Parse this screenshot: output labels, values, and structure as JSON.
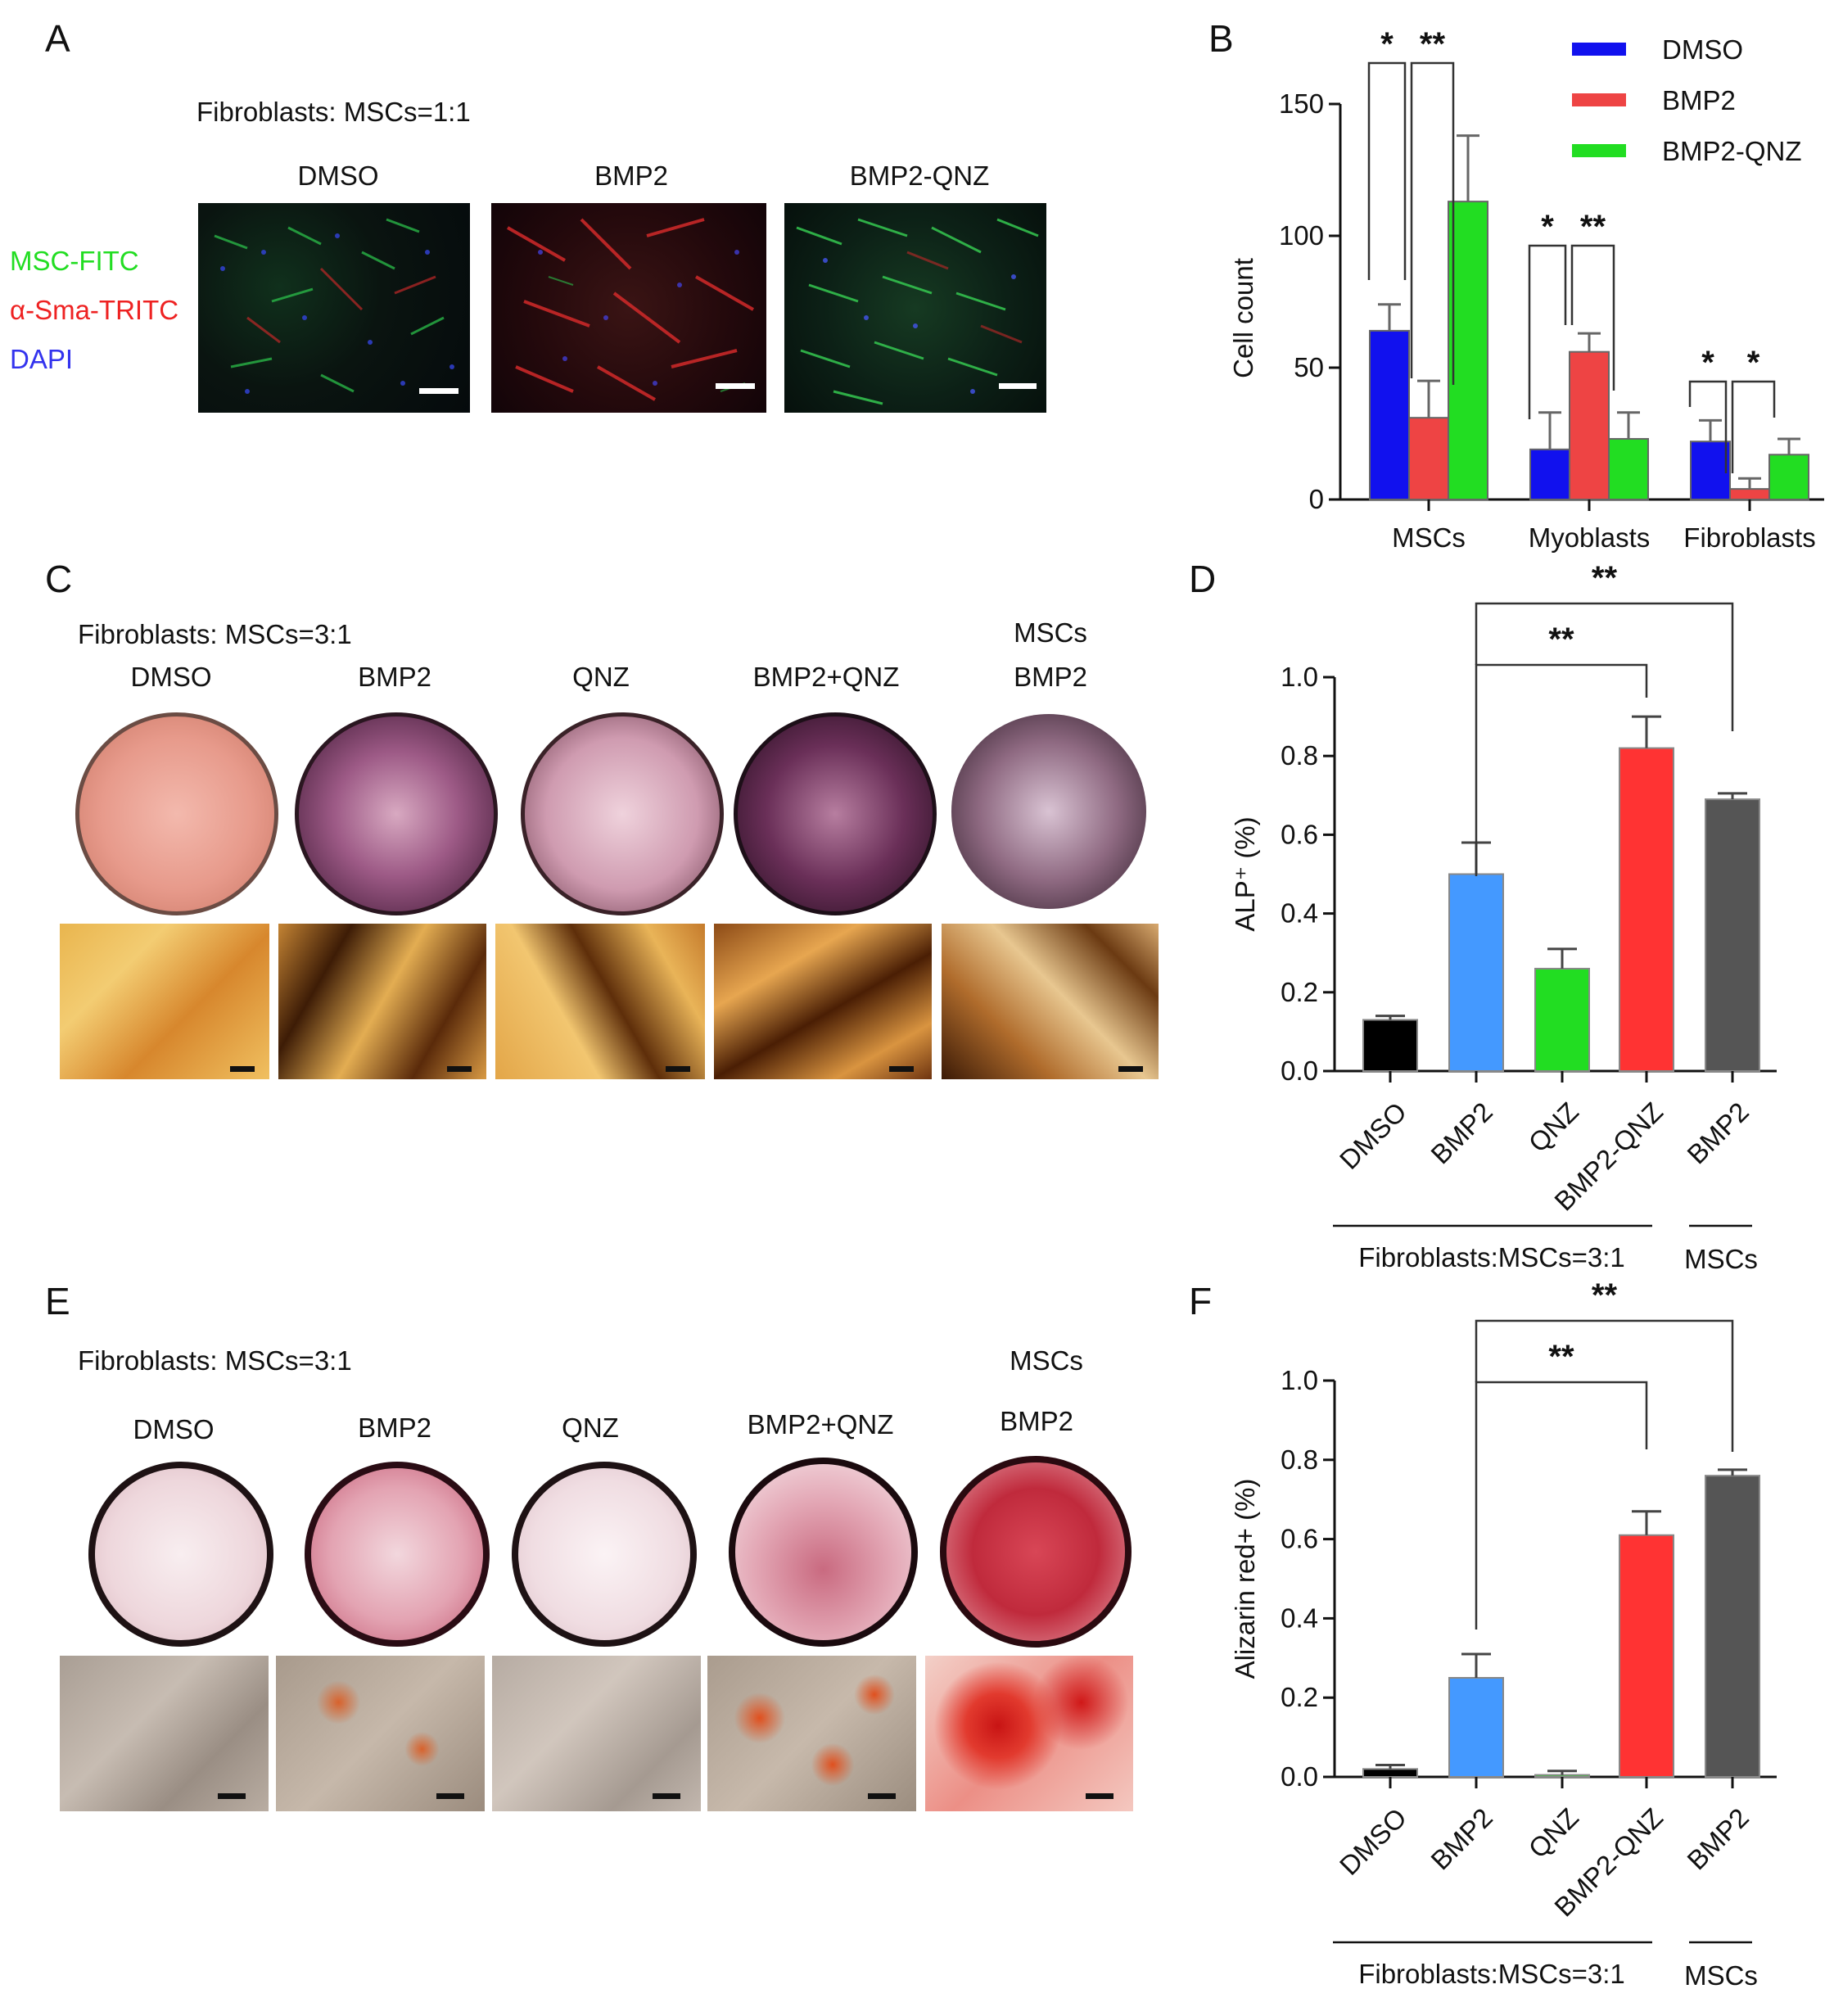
{
  "panelA": {
    "letter": "A",
    "ratio_label": "Fibroblasts: MSCs=1:1",
    "columns": [
      "DMSO",
      "BMP2",
      "BMP2-QNZ"
    ],
    "stain_legend": [
      {
        "label": "MSC-FITC",
        "color": "#22dd22"
      },
      {
        "label": "α-Sma-TRITC",
        "color": "#ee2222"
      },
      {
        "label": "DAPI",
        "color": "#3333ee"
      }
    ]
  },
  "panelC": {
    "letter": "C",
    "ratio_label": "Fibroblasts: MSCs=3:1",
    "msc_header": "MSCs",
    "columns": [
      "DMSO",
      "BMP2",
      "QNZ",
      "BMP2+QNZ",
      "BMP2"
    ]
  },
  "panelE": {
    "letter": "E",
    "ratio_label": "Fibroblasts: MSCs=3:1",
    "msc_header": "MSCs",
    "columns": [
      "DMSO",
      "BMP2",
      "QNZ",
      "BMP2+QNZ",
      "BMP2"
    ]
  },
  "chart_data": [
    {
      "panel": "B",
      "type": "bar",
      "ylabel": "Cell count",
      "ylim": [
        0,
        150
      ],
      "yticks": [
        0,
        50,
        100,
        150
      ],
      "categories": [
        "MSCs",
        "Myoblasts",
        "Fibroblasts"
      ],
      "legend_position": "top-right",
      "series": [
        {
          "name": "DMSO",
          "color": "#1111ee",
          "values": [
            64,
            19,
            22
          ],
          "errors": [
            10,
            14,
            8
          ]
        },
        {
          "name": "BMP2",
          "color": "#ee4444",
          "values": [
            31,
            56,
            4
          ],
          "errors": [
            14,
            7,
            4
          ]
        },
        {
          "name": "BMP2-QNZ",
          "color": "#22dd22",
          "values": [
            113,
            23,
            17
          ],
          "errors": [
            25,
            10,
            6
          ]
        }
      ],
      "significance": [
        {
          "group": 0,
          "pairs": [
            [
              0,
              1
            ],
            [
              1,
              2
            ]
          ],
          "labels": [
            "*",
            "**"
          ]
        },
        {
          "group": 1,
          "pairs": [
            [
              0,
              1
            ],
            [
              1,
              2
            ]
          ],
          "labels": [
            "*",
            "**"
          ]
        },
        {
          "group": 2,
          "pairs": [
            [
              0,
              1
            ],
            [
              1,
              2
            ]
          ],
          "labels": [
            "*",
            "*"
          ]
        }
      ]
    },
    {
      "panel": "D",
      "type": "bar",
      "ylabel": "ALP⁺ (%)",
      "ylim": [
        0,
        1.0
      ],
      "yticks": [
        "0.0",
        "0.2",
        "0.4",
        "0.6",
        "0.8",
        "1.0"
      ],
      "categories": [
        "DMSO",
        "BMP2",
        "QNZ",
        "BMP2-QNZ",
        "BMP2"
      ],
      "values": [
        0.13,
        0.5,
        0.26,
        0.82,
        0.69
      ],
      "errors": [
        0.01,
        0.08,
        0.05,
        0.08,
        0.015
      ],
      "colors": [
        "#000000",
        "#4499ff",
        "#22dd22",
        "#ff3333",
        "#555555"
      ],
      "group_labels": [
        "Fibroblasts:MSCs=3:1",
        "MSCs"
      ],
      "significance": [
        {
          "from": 1,
          "to": 3,
          "label": "**"
        },
        {
          "from": 1,
          "to": 4,
          "label": "**"
        }
      ]
    },
    {
      "panel": "F",
      "type": "bar",
      "ylabel": "Alizarin red+ (%)",
      "ylim": [
        0,
        1.0
      ],
      "yticks": [
        "0.0",
        "0.2",
        "0.4",
        "0.6",
        "0.8",
        "1.0"
      ],
      "categories": [
        "DMSO",
        "BMP2",
        "QNZ",
        "BMP2-QNZ",
        "BMP2"
      ],
      "values": [
        0.02,
        0.25,
        0.005,
        0.61,
        0.76
      ],
      "errors": [
        0.01,
        0.06,
        0.01,
        0.06,
        0.015
      ],
      "colors": [
        "#000000",
        "#4499ff",
        "#22dd22",
        "#ff3333",
        "#555555"
      ],
      "group_labels": [
        "Fibroblasts:MSCs=3:1",
        "MSCs"
      ],
      "significance": [
        {
          "from": 1,
          "to": 3,
          "label": "**"
        },
        {
          "from": 1,
          "to": 4,
          "label": "**"
        }
      ]
    }
  ]
}
